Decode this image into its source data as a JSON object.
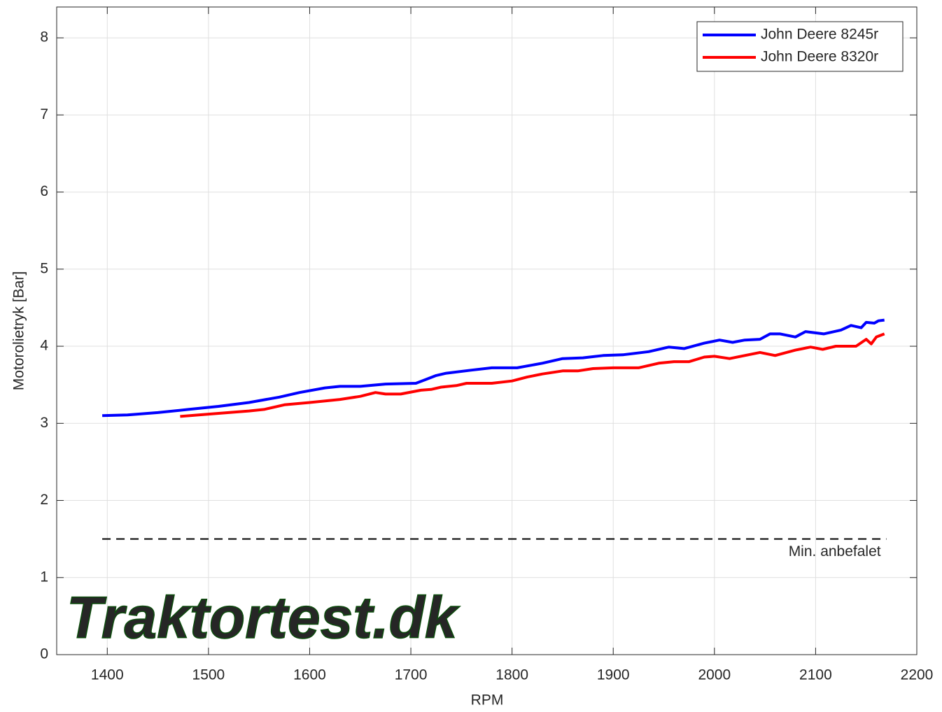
{
  "chart_data": {
    "type": "line",
    "xlabel": "RPM",
    "ylabel": "Motorolietryk [Bar]",
    "xlim": [
      1350,
      2200
    ],
    "ylim": [
      0,
      8.4
    ],
    "xticks": [
      1400,
      1500,
      1600,
      1700,
      1800,
      1900,
      2000,
      2100,
      2200
    ],
    "yticks": [
      0,
      1,
      2,
      3,
      4,
      5,
      6,
      7,
      8
    ],
    "grid": true,
    "legend": "northeast",
    "series": [
      {
        "name": "John Deere 8245r",
        "color": "#0000ff",
        "x": [
          1395,
          1420,
          1450,
          1480,
          1510,
          1540,
          1570,
          1590,
          1615,
          1630,
          1650,
          1675,
          1705,
          1715,
          1725,
          1735,
          1760,
          1780,
          1805,
          1830,
          1850,
          1870,
          1890,
          1910,
          1935,
          1955,
          1970,
          1990,
          2005,
          2018,
          2030,
          2045,
          2055,
          2065,
          2080,
          2090,
          2108,
          2125,
          2135,
          2145,
          2150,
          2158,
          2162,
          2168
        ],
        "values": [
          3.1,
          3.11,
          3.14,
          3.18,
          3.22,
          3.27,
          3.34,
          3.4,
          3.46,
          3.48,
          3.48,
          3.51,
          3.52,
          3.57,
          3.62,
          3.65,
          3.69,
          3.72,
          3.72,
          3.78,
          3.84,
          3.85,
          3.88,
          3.89,
          3.93,
          3.99,
          3.97,
          4.04,
          4.08,
          4.05,
          4.08,
          4.09,
          4.16,
          4.16,
          4.12,
          4.19,
          4.16,
          4.21,
          4.27,
          4.24,
          4.31,
          4.3,
          4.33,
          4.34
        ]
      },
      {
        "name": "John Deere 8320r",
        "color": "#ff0000",
        "x": [
          1472,
          1500,
          1540,
          1555,
          1575,
          1600,
          1630,
          1650,
          1665,
          1675,
          1690,
          1710,
          1720,
          1730,
          1745,
          1755,
          1780,
          1800,
          1815,
          1830,
          1850,
          1865,
          1880,
          1900,
          1925,
          1945,
          1960,
          1975,
          1990,
          2000,
          2015,
          2030,
          2045,
          2060,
          2080,
          2095,
          2107,
          2120,
          2140,
          2150,
          2155,
          2160,
          2168
        ],
        "values": [
          3.09,
          3.12,
          3.16,
          3.18,
          3.24,
          3.27,
          3.31,
          3.35,
          3.4,
          3.38,
          3.38,
          3.43,
          3.44,
          3.47,
          3.49,
          3.52,
          3.52,
          3.55,
          3.6,
          3.64,
          3.68,
          3.68,
          3.71,
          3.72,
          3.72,
          3.78,
          3.8,
          3.8,
          3.86,
          3.87,
          3.84,
          3.88,
          3.92,
          3.88,
          3.95,
          3.99,
          3.96,
          4.0,
          4.0,
          4.09,
          4.03,
          4.12,
          4.16
        ]
      }
    ],
    "reference_lines": [
      {
        "y": 1.5,
        "x": [
          1395,
          2170
        ],
        "label": "Min. anbefalet",
        "color": "#000000"
      }
    ],
    "watermark": "Traktortest.dk"
  }
}
